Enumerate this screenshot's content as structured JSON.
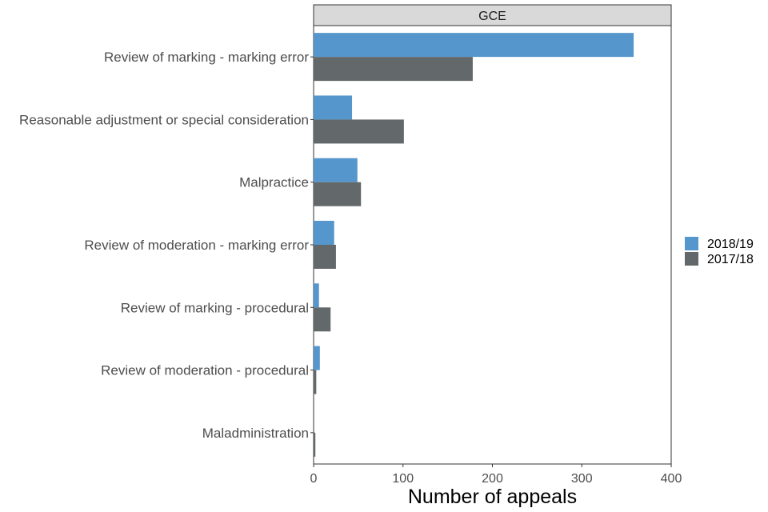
{
  "chart_data": {
    "type": "bar",
    "orientation": "horizontal",
    "facet": "GCE",
    "categories": [
      "Review of marking - marking error",
      "Reasonable adjustment or special consideration",
      "Malpractice",
      "Review of moderation - marking error",
      "Review of marking - procedural",
      "Review of moderation - procedural",
      "Maladministration"
    ],
    "series": [
      {
        "name": "2018/19",
        "color": "#5596cc",
        "values": [
          358,
          43,
          49,
          23,
          6,
          7,
          0
        ]
      },
      {
        "name": "2017/18",
        "color": "#63686a",
        "values": [
          178,
          101,
          53,
          25,
          19,
          3,
          2
        ]
      }
    ],
    "xlabel": "Number of appeals",
    "xlim": [
      0,
      400
    ],
    "xticks": [
      0,
      100,
      200,
      300,
      400
    ],
    "grid": false,
    "legend_position": "right"
  }
}
